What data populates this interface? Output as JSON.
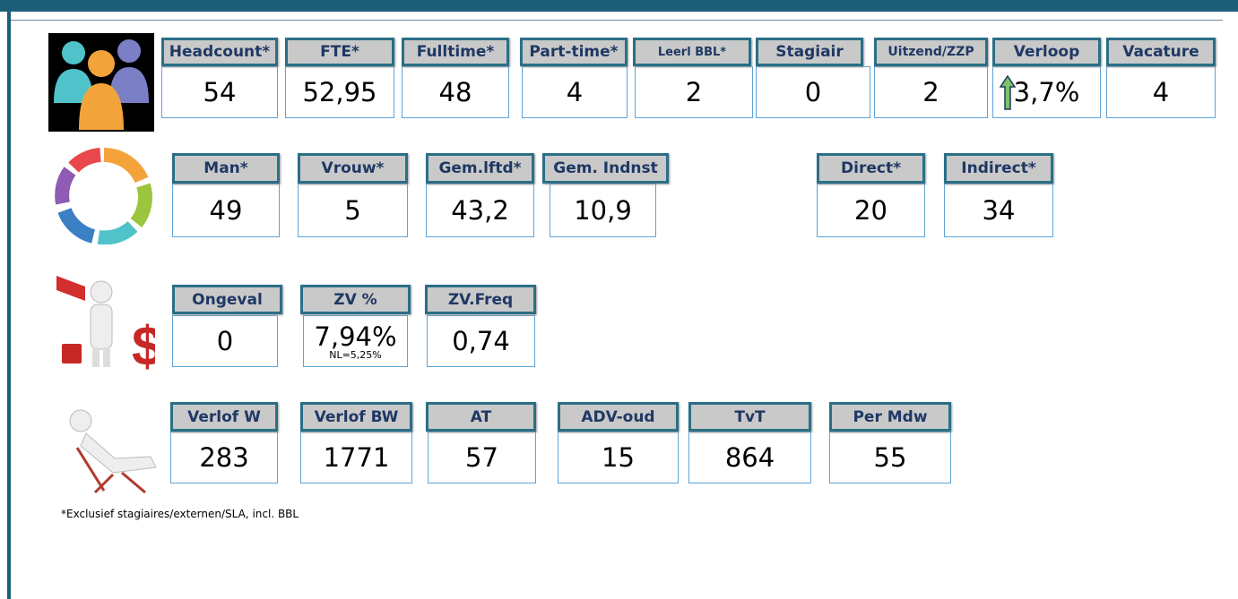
{
  "rows": [
    {
      "tiles": [
        {
          "label": "Headcount*",
          "value": "54"
        },
        {
          "label": "FTE*",
          "value": "52,95"
        },
        {
          "label": "Fulltime*",
          "value": "48"
        },
        {
          "label": "Part-time*",
          "value": "4"
        },
        {
          "label": "Leerl BBL*",
          "value": "2"
        },
        {
          "label": "Stagiair",
          "value": "0"
        },
        {
          "label": "Uitzend/ZZP",
          "value": "2"
        },
        {
          "label": "Verloop",
          "value": "3,7%"
        },
        {
          "label": "Vacature",
          "value": "4"
        }
      ]
    },
    {
      "tiles": [
        {
          "label": "Man*",
          "value": "49"
        },
        {
          "label": "Vrouw*",
          "value": "5"
        },
        {
          "label": "Gem.lftd*",
          "value": "43,2"
        },
        {
          "label": "Gem. Indnst",
          "value": "10,9"
        },
        {
          "label": "Direct*",
          "value": "20"
        },
        {
          "label": "Indirect*",
          "value": "34"
        }
      ]
    },
    {
      "tiles": [
        {
          "label": "Ongeval",
          "value": "0"
        },
        {
          "label": "ZV %",
          "value": "7,94%",
          "note": "NL=5,25%"
        },
        {
          "label": "ZV.Freq",
          "value": "0,74"
        }
      ]
    },
    {
      "tiles": [
        {
          "label": "Verlof W",
          "value": "283"
        },
        {
          "label": "Verlof BW",
          "value": "1771"
        },
        {
          "label": "AT",
          "value": "57"
        },
        {
          "label": "ADV-oud",
          "value": "15"
        },
        {
          "label": "TvT",
          "value": "864"
        },
        {
          "label": "Per Mdw",
          "value": "55"
        }
      ]
    }
  ],
  "footnote": "*Exclusief stagiaires/externen/SLA, incl. BBL"
}
